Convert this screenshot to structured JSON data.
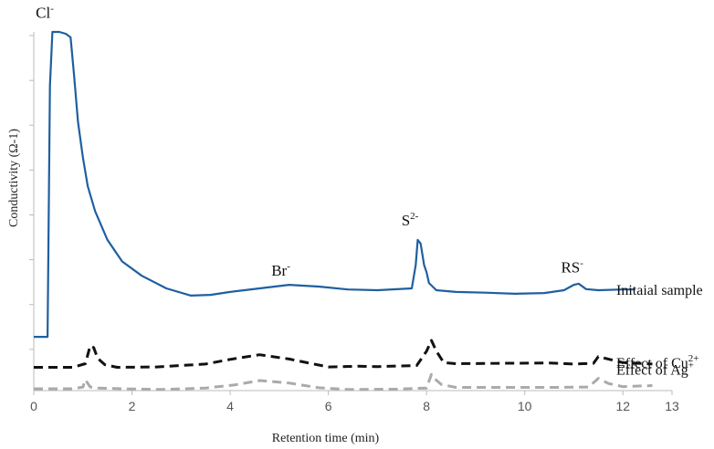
{
  "chart_data": {
    "type": "line",
    "xlabel": "Retention time (min)",
    "ylabel": "Conductivity (Ω-1)",
    "xlim": [
      0,
      13
    ],
    "xticks": [
      "0",
      "2",
      "4",
      "6",
      "8",
      "10",
      "12",
      "13"
    ],
    "ylim": [
      0,
      100
    ],
    "grid": false,
    "series": [
      {
        "name": "Initaial sample",
        "color": "#1f5fa0",
        "style": "solid",
        "x": [
          0,
          0.28,
          0.33,
          0.38,
          0.52,
          0.65,
          0.75,
          0.82,
          0.9,
          1.0,
          1.1,
          1.25,
          1.5,
          1.8,
          2.2,
          2.7,
          3.2,
          3.6,
          4.0,
          4.6,
          5.2,
          5.8,
          6.4,
          7.0,
          7.7,
          7.78,
          7.82,
          7.88,
          7.95,
          8.0,
          8.05,
          8.2,
          8.6,
          9.2,
          9.8,
          10.4,
          10.8,
          11.0,
          11.1,
          11.25,
          11.5,
          12.0,
          12.25
        ],
        "y": [
          15.0,
          15.0,
          85.0,
          100.0,
          100.0,
          99.5,
          98.5,
          88.0,
          75.0,
          65.0,
          57.0,
          50.0,
          42.0,
          36.0,
          32.0,
          28.5,
          26.5,
          26.7,
          27.5,
          28.5,
          29.5,
          29.0,
          28.2,
          28.0,
          28.5,
          35.0,
          42.0,
          41.0,
          35.0,
          33.0,
          30.0,
          28.0,
          27.5,
          27.3,
          27.0,
          27.2,
          28.0,
          29.5,
          29.8,
          28.3,
          28.0,
          28.2,
          28.2
        ]
      },
      {
        "name": "Effect of Cu2+",
        "color": "#111111",
        "style": "dashed",
        "x": [
          0,
          0.8,
          1.05,
          1.15,
          1.22,
          1.3,
          1.45,
          1.7,
          2.5,
          3.5,
          4.0,
          4.6,
          5.2,
          6.0,
          6.6,
          7.0,
          7.8,
          8.0,
          8.1,
          8.2,
          8.35,
          8.6,
          9.5,
          10.5,
          11.0,
          11.4,
          11.5,
          11.7,
          12.0,
          12.6
        ],
        "y": [
          6.5,
          6.5,
          7.5,
          12.5,
          12.0,
          9.0,
          7.2,
          6.5,
          6.6,
          7.4,
          8.7,
          10.0,
          8.8,
          6.6,
          6.8,
          6.7,
          7.0,
          11.0,
          14.0,
          11.0,
          7.8,
          7.5,
          7.6,
          7.7,
          7.4,
          7.6,
          9.5,
          8.8,
          7.8,
          7.4
        ]
      },
      {
        "name": "Effect of Ag+",
        "color": "#aaaaaa",
        "style": "dashed",
        "x": [
          0,
          0.8,
          1.0,
          1.05,
          1.15,
          1.3,
          1.8,
          2.6,
          3.5,
          4.1,
          4.6,
          5.2,
          5.8,
          6.4,
          7.4,
          8.0,
          8.1,
          8.15,
          8.3,
          8.6,
          9.6,
          10.6,
          11.3,
          11.5,
          11.7,
          12.0,
          12.6
        ],
        "y": [
          0.5,
          0.5,
          1.0,
          3.0,
          1.0,
          0.7,
          0.5,
          0.3,
          0.7,
          1.6,
          2.8,
          2.1,
          0.8,
          0.3,
          0.4,
          0.7,
          4.5,
          3.5,
          1.7,
          0.9,
          0.9,
          0.9,
          1.0,
          3.4,
          2.0,
          1.1,
          1.4
        ]
      }
    ],
    "annotations": [
      {
        "text": "Cl",
        "sup": "-",
        "x": 0.3,
        "y": 104
      },
      {
        "text": "Br",
        "sup": "-",
        "x": 5.1,
        "y": 32
      },
      {
        "text": "S",
        "sup": "2-",
        "x": 7.75,
        "y": 46
      },
      {
        "text": "RS",
        "sup": "-",
        "x": 11.0,
        "y": 33
      }
    ],
    "legend_labels": [
      {
        "text": "Initaial sample",
        "sup": ""
      },
      {
        "text": "Effect of Cu",
        "sup": "2+"
      },
      {
        "text": "Effect of Ag",
        "sup": "+"
      }
    ]
  }
}
